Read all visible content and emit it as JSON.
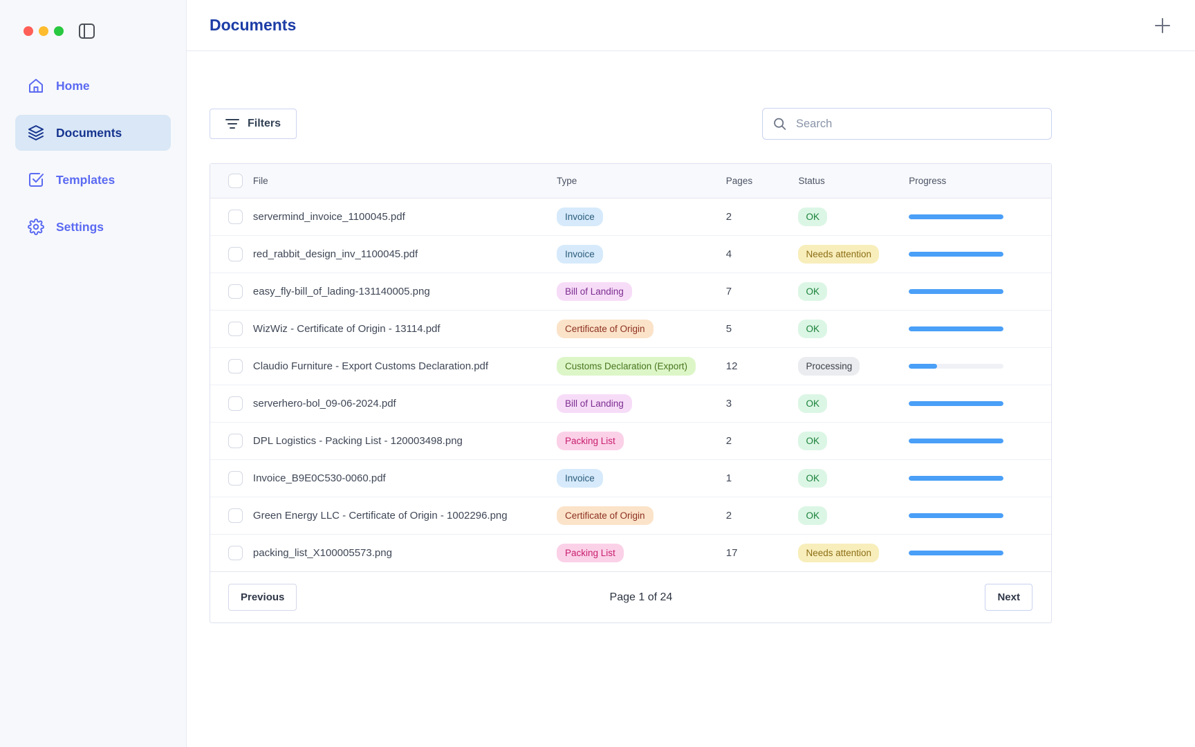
{
  "window": {
    "traffic_lights": [
      "#ff5f57",
      "#febc2e",
      "#28c840"
    ]
  },
  "sidebar": {
    "items": [
      {
        "label": "Home",
        "icon": "home-icon",
        "active": false
      },
      {
        "label": "Documents",
        "icon": "layers-icon",
        "active": true
      },
      {
        "label": "Templates",
        "icon": "check-square-icon",
        "active": false
      },
      {
        "label": "Settings",
        "icon": "gear-icon",
        "active": false
      }
    ]
  },
  "header": {
    "title": "Documents"
  },
  "toolbar": {
    "filters_label": "Filters",
    "search_placeholder": "Search"
  },
  "table": {
    "columns": {
      "file": "File",
      "type": "Type",
      "pages": "Pages",
      "status": "Status",
      "progress": "Progress"
    },
    "rows": [
      {
        "file": "servermind_invoice_1100045.pdf",
        "type": "Invoice",
        "pages": "2",
        "status": "OK",
        "progress": 100
      },
      {
        "file": "red_rabbit_design_inv_1100045.pdf",
        "type": "Invoice",
        "pages": "4",
        "status": "Needs attention",
        "progress": 100
      },
      {
        "file": "easy_fly-bill_of_lading-131140005.png",
        "type": "Bill of Landing",
        "pages": "7",
        "status": "OK",
        "progress": 100
      },
      {
        "file": "WizWiz - Certificate of Origin - 13114.pdf",
        "type": "Certificate of Origin",
        "pages": "5",
        "status": "OK",
        "progress": 100
      },
      {
        "file": "Claudio Furniture - Export Customs Declaration.pdf",
        "type": "Customs Declaration (Export)",
        "pages": "12",
        "status": "Processing",
        "progress": 30
      },
      {
        "file": "serverhero-bol_09-06-2024.pdf",
        "type": "Bill of Landing",
        "pages": "3",
        "status": "OK",
        "progress": 100
      },
      {
        "file": "DPL Logistics - Packing List - 120003498.png",
        "type": "Packing List",
        "pages": "2",
        "status": "OK",
        "progress": 100
      },
      {
        "file": "Invoice_B9E0C530-0060.pdf",
        "type": "Invoice",
        "pages": "1",
        "status": "OK",
        "progress": 100
      },
      {
        "file": "Green Energy LLC - Certificate of Origin - 1002296.png",
        "type": "Certificate of Origin",
        "pages": "2",
        "status": "OK",
        "progress": 100
      },
      {
        "file": "packing_list_X100005573.png",
        "type": "Packing List",
        "pages": "17",
        "status": "Needs attention",
        "progress": 100
      }
    ]
  },
  "type_styles": {
    "Invoice": {
      "bg": "#d6eafb",
      "fg": "#2a5a7a"
    },
    "Bill of Landing": {
      "bg": "#f7dcf8",
      "fg": "#7c2d8f"
    },
    "Certificate of Origin": {
      "bg": "#fbe3c9",
      "fg": "#8c3020"
    },
    "Customs Declaration (Export)": {
      "bg": "#ddf6c8",
      "fg": "#47761d"
    },
    "Packing List": {
      "bg": "#fbd1e8",
      "fg": "#c81e6e"
    }
  },
  "status_styles": {
    "OK": {
      "bg": "#dcf6e5",
      "fg": "#188038"
    },
    "Needs attention": {
      "bg": "#f8eebb",
      "fg": "#8d6e16"
    },
    "Processing": {
      "bg": "#ebecf0",
      "fg": "#3b4048"
    }
  },
  "colors": {
    "progress_fill": "#4a9ff7",
    "accent_navy": "#16348f",
    "sidebar_indigo": "#5b6af2"
  },
  "pagination": {
    "previous_label": "Previous",
    "page_info": "Page 1 of 24",
    "next_label": "Next"
  }
}
